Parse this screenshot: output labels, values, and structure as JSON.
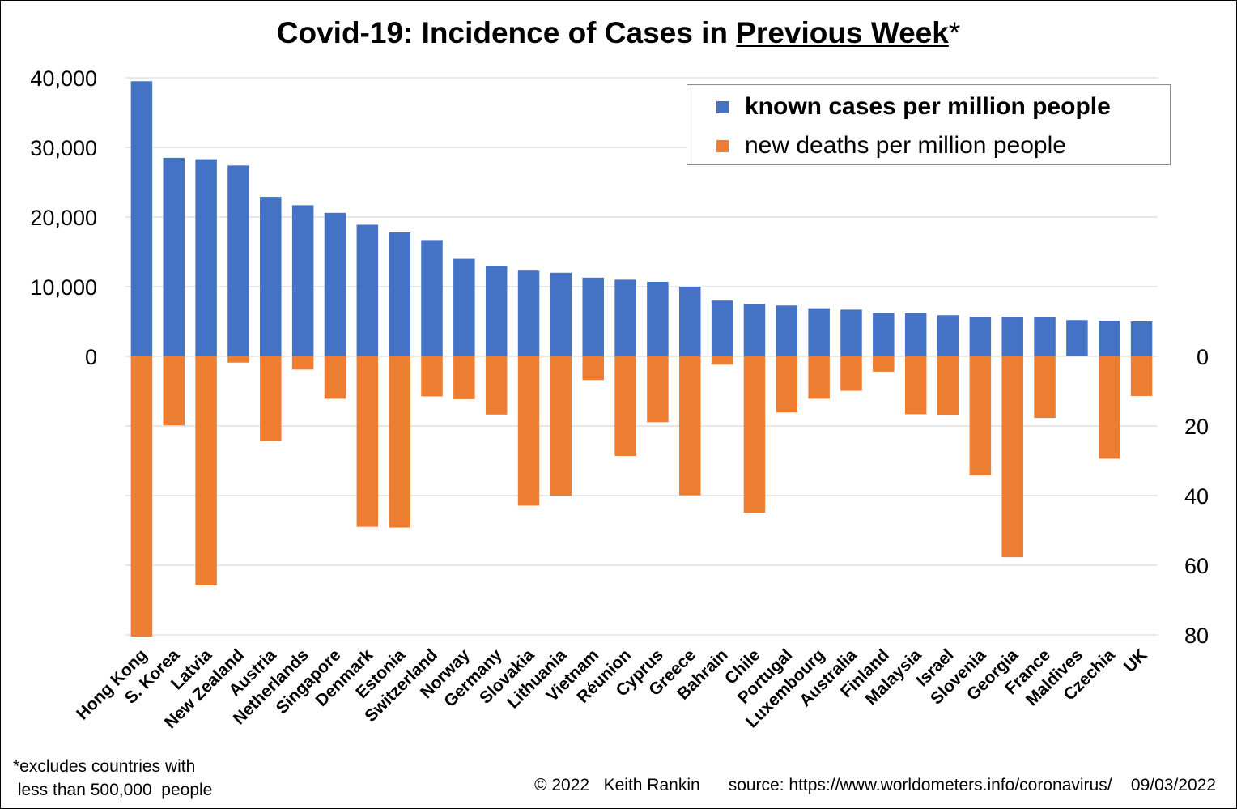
{
  "title": {
    "prefix": "Covid-19: Incidence of Cases in ",
    "underlined": "Previous Week",
    "suffix": "*"
  },
  "legend": {
    "cases": "known cases per million people",
    "deaths": "new deaths per million people"
  },
  "colors": {
    "cases": "#4472c4",
    "deaths": "#ed7d31",
    "grid": "#d9d9d9",
    "legend_border": "#8c8c8c"
  },
  "footnote": {
    "line1": "*excludes countries with",
    "line2": " less than 500,000  people"
  },
  "footer": {
    "copyright": "© 2022   Keith Rankin",
    "source": "source: https://www.worldometers.info/coronavirus/",
    "date": "09/03/2022"
  },
  "chart_data": {
    "type": "bar",
    "title": "Covid-19: Incidence of Cases in Previous Week*",
    "categories": [
      "Hong Kong",
      "S. Korea",
      "Latvia",
      "New Zealand",
      "Austria",
      "Netherlands",
      "Singapore",
      "Denmark",
      "Estonia",
      "Switzerland",
      "Norway",
      "Germany",
      "Slovakia",
      "Lithuania",
      "Vietnam",
      "Réunion",
      "Cyprus",
      "Greece",
      "Bahrain",
      "Chile",
      "Portugal",
      "Luxembourg",
      "Australia",
      "Finland",
      "Malaysia",
      "Israel",
      "Slovenia",
      "Georgia",
      "France",
      "Maldives",
      "Czechia",
      "UK"
    ],
    "series": [
      {
        "name": "known cases per million people",
        "axis": "left",
        "values": [
          39500,
          28500,
          28300,
          27400,
          22900,
          21700,
          20600,
          18900,
          17800,
          16700,
          14000,
          13000,
          12300,
          12000,
          11300,
          11000,
          10700,
          10000,
          8000,
          7500,
          7300,
          6900,
          6700,
          6200,
          6200,
          5900,
          5700,
          5700,
          5600,
          5200,
          5100,
          5000
        ]
      },
      {
        "name": "new deaths per million people",
        "axis": "right",
        "values": [
          80.5,
          19.8,
          65.8,
          1.8,
          24.3,
          3.8,
          12.2,
          49.0,
          49.2,
          11.5,
          12.3,
          16.7,
          42.9,
          40.0,
          6.8,
          28.6,
          18.9,
          39.9,
          2.4,
          44.9,
          16.1,
          12.2,
          9.9,
          4.4,
          16.6,
          16.8,
          34.2,
          57.7,
          17.7,
          0,
          29.4,
          11.4
        ]
      }
    ],
    "left_axis": {
      "ticks": [
        0,
        10000,
        20000,
        30000,
        40000
      ],
      "tick_labels": [
        "0",
        "10,000",
        "20,000",
        "30,000",
        "40,000"
      ],
      "range": [
        0,
        40000
      ]
    },
    "right_axis": {
      "ticks": [
        0,
        20,
        40,
        60,
        80
      ],
      "tick_labels": [
        "0",
        "20",
        "40",
        "60",
        "80"
      ],
      "range": [
        0,
        80
      ],
      "direction": "downward"
    },
    "grid": true,
    "legend_position": "top-right"
  }
}
